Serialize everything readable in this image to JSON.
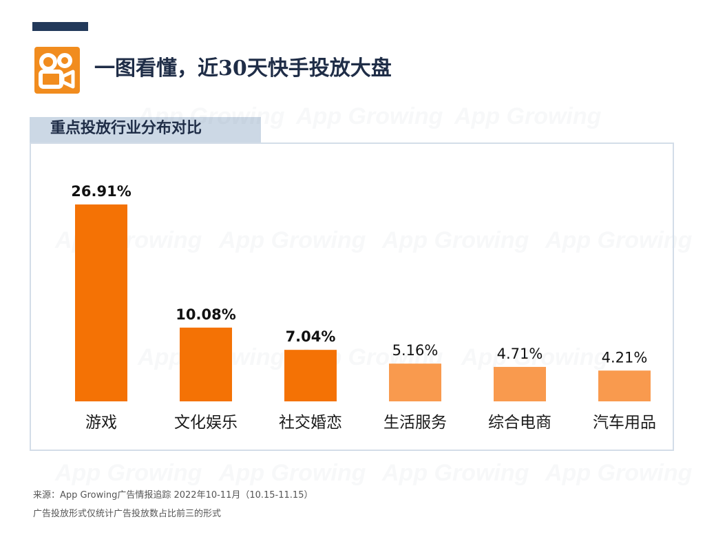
{
  "header": {
    "title": "一图看懂，近30天快手投放大盘",
    "logo_icon": "kuaishou-logo-icon",
    "logo_color": "#f18c1e",
    "accent_bar_color": "#22395a"
  },
  "section": {
    "title": "重点投放行业分布对比"
  },
  "watermark": "App Growing",
  "chart_data": {
    "type": "bar",
    "categories": [
      "游戏",
      "文化娱乐",
      "社交婚恋",
      "生活服务",
      "综合电商",
      "汽车用品"
    ],
    "values": [
      26.91,
      10.08,
      7.04,
      5.16,
      4.71,
      4.21
    ],
    "value_labels": [
      "26.91%",
      "10.08%",
      "7.04%",
      "5.16%",
      "4.71%",
      "4.21%"
    ],
    "highlight_top": 3,
    "colors": {
      "top": "#f47205",
      "other": "#f99a4e"
    },
    "ylim": [
      0,
      30
    ],
    "grid": false,
    "legend": "none"
  },
  "footer": {
    "source": "来源：App Growing广告情报追踪 2022年10-11月（10.15-11.15）",
    "note": "广告投放形式仅统计广告投放数占比前三的形式"
  }
}
